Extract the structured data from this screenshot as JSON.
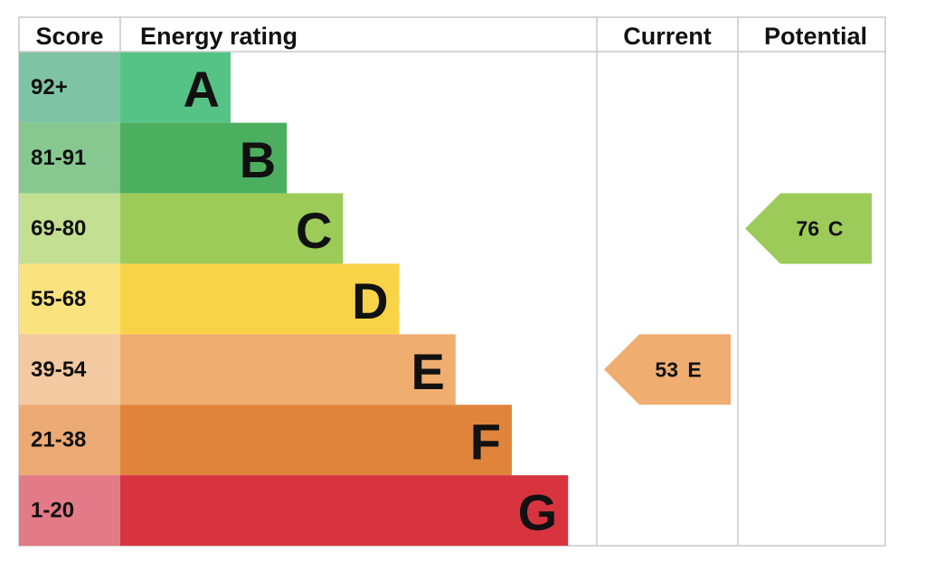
{
  "header": {
    "score": "Score",
    "rating": "Energy rating",
    "current": "Current",
    "potential": "Potential"
  },
  "bands": [
    {
      "score": "92+",
      "letter": "A",
      "color": "#55c386",
      "score_color": "#7fc3a5"
    },
    {
      "score": "81-91",
      "letter": "B",
      "color": "#4caf60",
      "score_color": "#86c88f"
    },
    {
      "score": "69-80",
      "letter": "C",
      "color": "#9ccb5a",
      "score_color": "#c2df92"
    },
    {
      "score": "55-68",
      "letter": "D",
      "color": "#f8d348",
      "score_color": "#fae27f"
    },
    {
      "score": "39-54",
      "letter": "E",
      "color": "#efad70",
      "score_color": "#f3c9a1"
    },
    {
      "score": "21-38",
      "letter": "F",
      "color": "#e1843b",
      "score_color": "#ecaa74"
    },
    {
      "score": "1-20",
      "letter": "G",
      "color": "#d73440",
      "score_color": "#e37a87"
    }
  ],
  "current": {
    "score": 53,
    "letter": "E"
  },
  "potential": {
    "score": 76,
    "letter": "C"
  }
}
